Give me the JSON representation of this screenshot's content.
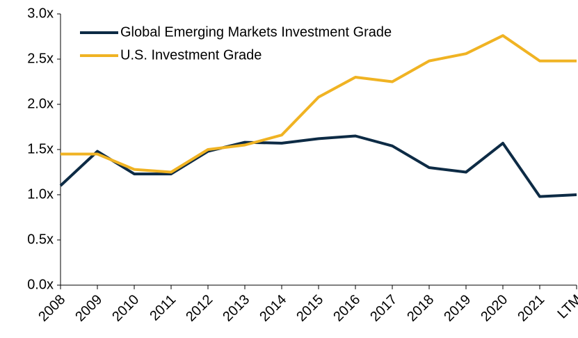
{
  "chart_data": {
    "type": "line",
    "categories": [
      "2008",
      "2009",
      "2010",
      "2011",
      "2012",
      "2013",
      "2014",
      "2015",
      "2016",
      "2017",
      "2018",
      "2019",
      "2020",
      "2021",
      "LTM"
    ],
    "series": [
      {
        "name": "Global Emerging Markets Investment Grade",
        "color": "#0d2b45",
        "values": [
          1.1,
          1.48,
          1.23,
          1.23,
          1.48,
          1.58,
          1.57,
          1.62,
          1.65,
          1.54,
          1.3,
          1.25,
          1.57,
          0.98,
          1.0
        ]
      },
      {
        "name": "U.S. Investment Grade",
        "color": "#f0b323",
        "values": [
          1.45,
          1.45,
          1.28,
          1.25,
          1.5,
          1.55,
          1.66,
          2.08,
          2.3,
          2.25,
          2.48,
          2.56,
          2.76,
          2.48,
          2.48
        ]
      }
    ],
    "ylim": [
      0,
      3
    ],
    "yticks": [
      {
        "value": 0,
        "label": "0.0x"
      },
      {
        "value": 0.5,
        "label": "0.5x"
      },
      {
        "value": 1,
        "label": "1.0x"
      },
      {
        "value": 1.5,
        "label": "1.5x"
      },
      {
        "value": 2,
        "label": "2.0x"
      },
      {
        "value": 2.5,
        "label": "2.5x"
      },
      {
        "value": 3,
        "label": "3.0x"
      }
    ],
    "grid": false,
    "legend": "upper left"
  }
}
